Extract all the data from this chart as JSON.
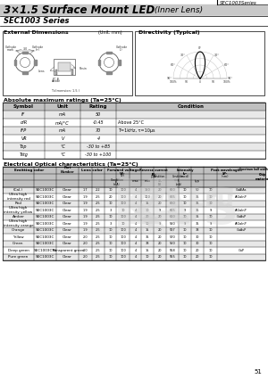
{
  "title_bold": "3×1.5 Surface Mount LED",
  "title_italic": " (Inner Lens)",
  "series": "SEC1003 Series",
  "top_label": "SEC1003Series",
  "ext_dim_label": "External Dimensions",
  "unit_label": "(Unit: mm)",
  "directivity_label": "Directivity (Typical)",
  "abs_ratings_title": "Absolute maximum ratings (Ta=25°C)",
  "abs_ratings_headers": [
    "Symbol",
    "Unit",
    "Rating",
    "Condition"
  ],
  "abs_ratings_rows": [
    [
      "IF",
      "mA",
      "50",
      ""
    ],
    [
      "αIR",
      "mA/°C",
      "-0.45",
      "Above 25°C"
    ],
    [
      "IFP",
      "mA",
      "70",
      "T=1kHz, τ=10μs"
    ],
    [
      "VR",
      "V",
      "4",
      ""
    ],
    [
      "Top",
      "°C",
      "-30 to +85",
      ""
    ],
    [
      "Tstg",
      "°C",
      "-30 to +100",
      ""
    ]
  ],
  "elec_opt_title": "Electrical Optical characteristics (Ta=25°C)",
  "emitting": [
    "(Cal.)",
    "Ultra high\nintensity red",
    "Red",
    "Ultra high\nintensity yellow",
    "Amber",
    "Ultra high\nintensity orange",
    "Orange",
    "Yellow",
    "Green",
    "Deep green",
    "Pure green"
  ],
  "part_numbers": [
    "SEC1003C",
    "SEC1003C",
    "SEC1003C",
    "SEC1003C",
    "SEC1003C",
    "SEC1003C",
    "SEC1003C",
    "SEC1003C",
    "SEC1003C",
    "SEC1003C-N",
    "SEC1003C"
  ],
  "lens_colors": [
    "Clear",
    "Clear",
    "Clear",
    "Clear",
    "Clear",
    "Clear",
    "Clear",
    "Clear",
    "Clear",
    "Transparent green",
    "Clear"
  ],
  "vf_typ": [
    "1.7",
    "1.9",
    "1.9",
    "1.9",
    "1.9",
    "1.9",
    "1.9",
    "2.0",
    "2.0",
    "2.0",
    "2.0"
  ],
  "vf_max": [
    "2.2",
    "2.5",
    "2.5",
    "2.5",
    "2.5",
    "2.5",
    "2.5",
    "2.5",
    "2.5",
    "2.5",
    "2.5"
  ],
  "cond_if": [
    "10",
    "20",
    "10",
    "3",
    "10",
    "3",
    "10",
    "10",
    "10",
    "10",
    "10"
  ],
  "rev_ir": [
    "100",
    "100",
    "100",
    "10",
    "100",
    "10",
    "100",
    "100",
    "100",
    "100",
    "100"
  ],
  "cond_vr": [
    "4",
    "4",
    "4",
    "4",
    "4",
    "4",
    "4",
    "4",
    "4",
    "4",
    "4"
  ],
  "iv_typ": [
    "150",
    "100",
    "15",
    "10",
    "20",
    "10",
    "15",
    "35",
    "33",
    "15",
    "10"
  ],
  "iv_cond": [
    "20",
    "20",
    "20",
    "9",
    "20",
    "9",
    "20",
    "20",
    "20",
    "20",
    "20"
  ],
  "iv_if": [
    "(mA)",
    "(mA)",
    "(mA)",
    "(mA)",
    "(mA)",
    "(mA)",
    "(mA)",
    "(mA)",
    "(mA)",
    "(mA)",
    "(mA)"
  ],
  "peak_wp": [
    "660",
    "635",
    "630",
    "615",
    "610",
    "590",
    "587",
    "570",
    "560",
    "558",
    "555"
  ],
  "peak_cond_if": [
    "10",
    "10",
    "10",
    "9",
    "10",
    "9",
    "10",
    "10",
    "10",
    "10",
    "10"
  ],
  "peak_if_ma": [
    "(mA)",
    "(mA)",
    "(mA)",
    "(mA)",
    "(mA)",
    "(mA)",
    "(mA)",
    "(mA)",
    "(mA)",
    "(mA)",
    "(mA)"
  ],
  "delta_lam": [
    "50",
    "35",
    "35",
    "35",
    "35",
    "35",
    "33",
    "30",
    "30",
    "20",
    "20"
  ],
  "dl_cond_if": [
    "10",
    "10",
    "10",
    "9",
    "10",
    "9",
    "10",
    "10",
    "10",
    "10",
    "10"
  ],
  "dl_if_ma": [
    "(mA)",
    "(mA)",
    "(mA)",
    "(mA)",
    "(mA)",
    "(mA)",
    "(mA)",
    "(mA)",
    "(mA)",
    "(mA)",
    "(mA)"
  ],
  "chip_material": [
    "GaAIAs",
    "AlGaInP",
    "",
    "AlGaInP",
    "GaAsP",
    "AlGaInP",
    "GaAsP",
    "",
    "",
    "GaP",
    ""
  ],
  "page_num": "51"
}
